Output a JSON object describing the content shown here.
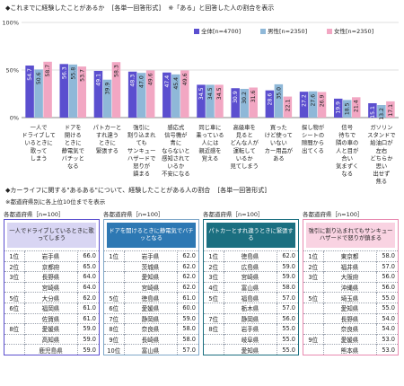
{
  "header": {
    "title": "◆これまでに経験したことがあるか",
    "format": "[各単一回答形式]",
    "note": "※「ある」と回答した人の割合を表示"
  },
  "chart_data": {
    "type": "bar",
    "ylim": [
      0,
      100
    ],
    "yticks": [
      "0%",
      "50%",
      "100%"
    ],
    "categories": [
      [
        "一人で",
        "ドライブして",
        "いるときに",
        "歌って",
        "しまう"
      ],
      [
        "ドアを",
        "開ける",
        "ときに",
        "静電気で",
        "バチッと",
        "なる"
      ],
      [
        "パトカーと",
        "すれ違う",
        "ときに",
        "緊張する"
      ],
      [
        "強引に",
        "割り込まれ",
        "ても",
        "サンキュー",
        "ハザードで",
        "怒りが",
        "鎮まる"
      ],
      [
        "感応式",
        "信号機が",
        "青に",
        "ならないと",
        "感知されて",
        "いるか",
        "不安になる"
      ],
      [
        "同じ車に",
        "乗っている",
        "人には",
        "親近感を",
        "覚える"
      ],
      [
        "高級車を",
        "見ると",
        "どんな人が",
        "運転して",
        "いるか",
        "見てしまう"
      ],
      [
        "買った",
        "けど使って",
        "いない",
        "カー用品が",
        "ある"
      ],
      [
        "探し物が",
        "シートの",
        "隙間から",
        "出てくる"
      ],
      [
        "信号",
        "待ちで",
        "隣の車の",
        "人と目が",
        "合い",
        "気まずく",
        "なる"
      ],
      [
        "ガソリン",
        "スタンドで",
        "給油口が",
        "左右",
        "どちらか",
        "思い",
        "出せず",
        "焦る"
      ]
    ],
    "series": [
      {
        "name": "全体",
        "n": "[n=4700]",
        "color": "#5b4fcf",
        "values": [
          54.7,
          56.3,
          49.1,
          48.3,
          47.4,
          34.5,
          30.9,
          28.6,
          27.2,
          19.9,
          15.1
        ]
      },
      {
        "name": "男性",
        "n": "[n=2350]",
        "color": "#8fb8d8",
        "values": [
          50.6,
          55.8,
          39.9,
          47.0,
          45.4,
          34.5,
          30.2,
          35.0,
          27.6,
          18.5,
          13.2
        ]
      },
      {
        "name": "女性",
        "n": "[n=2350]",
        "color": "#f2a7c3",
        "values": [
          58.7,
          53.7,
          58.3,
          49.6,
          49.6,
          34.5,
          31.6,
          22.1,
          26.9,
          21.4,
          17.1
        ]
      }
    ]
  },
  "section2": {
    "title": "◆カーライフに関する\"あるある\"について、経験したことがある人の割合",
    "format": "[各単一回答形式]",
    "note": "※都道府県別に各上位10位までを表示"
  },
  "panels": [
    {
      "caption": "各都道府県［n=100］",
      "heading": "一人でドライブしているときに歌ってしまう",
      "border": "#5b4fcf",
      "head_bg": "#d8d5f3",
      "head_color": "#222222",
      "rows": [
        {
          "rank": "1位",
          "pref": "岩手県",
          "value": "66.0"
        },
        {
          "rank": "2位",
          "pref": "京都府",
          "value": "65.0"
        },
        {
          "rank": "3位",
          "pref": "長野県",
          "value": "64.0"
        },
        {
          "rank": "",
          "pref": "宮崎県",
          "value": "64.0"
        },
        {
          "rank": "5位",
          "pref": "大分県",
          "value": "62.0"
        },
        {
          "rank": "6位",
          "pref": "福岡県",
          "value": "61.0"
        },
        {
          "rank": "",
          "pref": "佐賀県",
          "value": "61.0"
        },
        {
          "rank": "8位",
          "pref": "愛媛県",
          "value": "59.0"
        },
        {
          "rank": "",
          "pref": "高知県",
          "value": "59.0"
        },
        {
          "rank": "",
          "pref": "鹿児島県",
          "value": "59.0"
        }
      ]
    },
    {
      "caption": "各都道府県［n=100］",
      "heading": "ドアを開けるときに静電気でバチッとなる",
      "border": "#7fa8c9",
      "head_bg": "#2d78b3",
      "head_color": "#ffffff",
      "rows": [
        {
          "rank": "1位",
          "pref": "岩手県",
          "value": "62.0"
        },
        {
          "rank": "",
          "pref": "茨城県",
          "value": "62.0"
        },
        {
          "rank": "",
          "pref": "愛知県",
          "value": "62.0"
        },
        {
          "rank": "",
          "pref": "宮崎県",
          "value": "62.0"
        },
        {
          "rank": "5位",
          "pref": "徳島県",
          "value": "61.0"
        },
        {
          "rank": "6位",
          "pref": "愛媛県",
          "value": "60.0"
        },
        {
          "rank": "7位",
          "pref": "静岡県",
          "value": "59.0"
        },
        {
          "rank": "8位",
          "pref": "奈良県",
          "value": "58.0"
        },
        {
          "rank": "9位",
          "pref": "長崎県",
          "value": "58.0"
        },
        {
          "rank": "10位",
          "pref": "富山県",
          "value": "57.0"
        }
      ]
    },
    {
      "caption": "各都道府県［n=100］",
      "heading": "パトカーとすれ違うときに緊張する",
      "border": "#1b6f80",
      "head_bg": "#1b6f80",
      "head_color": "#ffffff",
      "rows": [
        {
          "rank": "1位",
          "pref": "徳島県",
          "value": "62.0"
        },
        {
          "rank": "2位",
          "pref": "広島県",
          "value": "59.0"
        },
        {
          "rank": "3位",
          "pref": "宮崎県",
          "value": "59.0"
        },
        {
          "rank": "4位",
          "pref": "富山県",
          "value": "58.0"
        },
        {
          "rank": "5位",
          "pref": "福島県",
          "value": "57.0"
        },
        {
          "rank": "",
          "pref": "栃木県",
          "value": "57.0"
        },
        {
          "rank": "7位",
          "pref": "静岡県",
          "value": "56.0"
        },
        {
          "rank": "8位",
          "pref": "岩手県",
          "value": "55.0"
        },
        {
          "rank": "",
          "pref": "岐阜県",
          "value": "55.0"
        },
        {
          "rank": "",
          "pref": "愛知県",
          "value": "55.0"
        }
      ]
    },
    {
      "caption": "各都道府県［n=100］",
      "heading": "強引に割り込まれてもサンキューハザードで怒りが鎮まる",
      "border": "#e88ab0",
      "head_bg": "#f9d3e2",
      "head_color": "#222222",
      "rows": [
        {
          "rank": "1位",
          "pref": "東京都",
          "value": "58.0"
        },
        {
          "rank": "2位",
          "pref": "福井県",
          "value": "57.0"
        },
        {
          "rank": "3位",
          "pref": "大阪府",
          "value": "56.0"
        },
        {
          "rank": "",
          "pref": "沖縄県",
          "value": "56.0"
        },
        {
          "rank": "5位",
          "pref": "埼玉県",
          "value": "55.0"
        },
        {
          "rank": "",
          "pref": "愛知県",
          "value": "55.0"
        },
        {
          "rank": "",
          "pref": "長野県",
          "value": "54.0"
        },
        {
          "rank": "",
          "pref": "奈良県",
          "value": "54.0"
        },
        {
          "rank": "9位",
          "pref": "愛媛県",
          "value": "53.0"
        },
        {
          "rank": "",
          "pref": "熊本県",
          "value": "53.0"
        }
      ]
    }
  ]
}
